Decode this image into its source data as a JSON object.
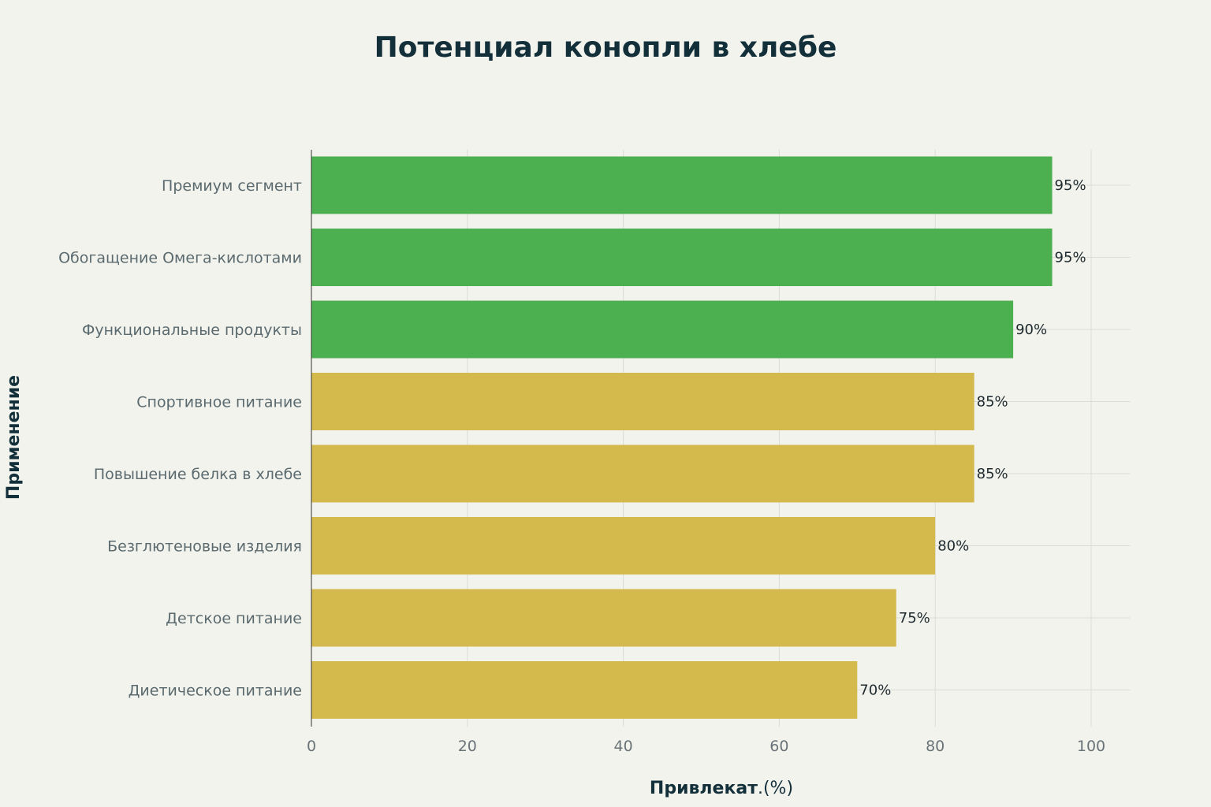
{
  "chart_data": {
    "type": "bar",
    "orientation": "horizontal",
    "title": "Потенциал конопли в хлебе",
    "xlabel": "Привлекат.(%)",
    "ylabel": "Применение",
    "categories": [
      "Премиум сегмент",
      "Обогащение Омега-кислотами",
      "Функциональные продукты",
      "Спортивное питание",
      "Повышение белка в хлебе",
      "Безглютеновые изделия",
      "Детское питание",
      "Диетическое питание"
    ],
    "values": [
      95,
      95,
      90,
      85,
      85,
      80,
      75,
      70
    ],
    "data_labels": [
      "95%",
      "95%",
      "90%",
      "85%",
      "85%",
      "80%",
      "75%",
      "70%"
    ],
    "colors": [
      "#4caf50",
      "#4caf50",
      "#4caf50",
      "#d4b94c",
      "#d4b94c",
      "#d4b94c",
      "#d4b94c",
      "#d4b94c"
    ],
    "xlim": [
      0,
      105
    ],
    "xticks": [
      0,
      20,
      40,
      60,
      80,
      100
    ],
    "grid": true
  }
}
